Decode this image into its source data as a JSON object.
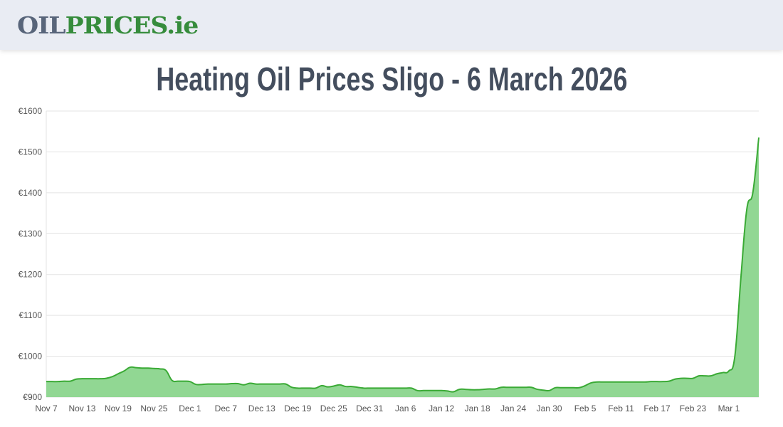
{
  "header": {
    "logo_part1": "OIL",
    "logo_part2": "PRICES.ie"
  },
  "title": "Heating Oil Prices Sligo - 6 March 2026",
  "chart_data": {
    "type": "area",
    "title": "Heating Oil Prices Sligo - 6 March 2026",
    "xlabel": "",
    "ylabel": "",
    "ylim": [
      900,
      1600
    ],
    "yticks": [
      "€900",
      "€1000",
      "€1100",
      "€1200",
      "€1300",
      "€1400",
      "€1500",
      "€1600"
    ],
    "ytick_values": [
      900,
      1000,
      1100,
      1200,
      1300,
      1400,
      1500,
      1600
    ],
    "xticks": [
      "Nov 7",
      "Nov 13",
      "Nov 19",
      "Nov 25",
      "Dec 1",
      "Dec 7",
      "Dec 13",
      "Dec 19",
      "Dec 25",
      "Dec 31",
      "Jan 6",
      "Jan 12",
      "Jan 18",
      "Jan 24",
      "Jan 30",
      "Feb 5",
      "Feb 11",
      "Feb 17",
      "Feb 23",
      "Mar 1"
    ],
    "xtick_interval_days": 6,
    "x_start": "Nov 7",
    "x_end": "Mar 6",
    "grid": true,
    "line_color": "#3aaa35",
    "fill_color": "#91d793",
    "values": [
      938,
      938,
      938,
      939,
      939,
      944,
      945,
      945,
      945,
      945,
      946,
      950,
      957,
      964,
      973,
      972,
      971,
      971,
      970,
      969,
      965,
      941,
      939,
      939,
      938,
      931,
      931,
      932,
      932,
      932,
      932,
      933,
      933,
      930,
      934,
      932,
      932,
      932,
      932,
      932,
      932,
      924,
      922,
      922,
      922,
      922,
      928,
      925,
      927,
      930,
      926,
      926,
      924,
      922,
      922,
      922,
      922,
      922,
      922,
      922,
      922,
      922,
      916,
      916,
      916,
      916,
      916,
      915,
      913,
      919,
      919,
      918,
      918,
      919,
      920,
      920,
      924,
      924,
      924,
      924,
      924,
      924,
      919,
      917,
      916,
      923,
      923,
      923,
      923,
      923,
      928,
      935,
      937,
      937,
      937,
      937,
      937,
      937,
      937,
      937,
      937,
      938,
      938,
      938,
      939,
      944,
      946,
      946,
      946,
      952,
      952,
      952,
      957,
      960,
      964,
      1000,
      1190,
      1360,
      1400,
      1535
    ]
  }
}
